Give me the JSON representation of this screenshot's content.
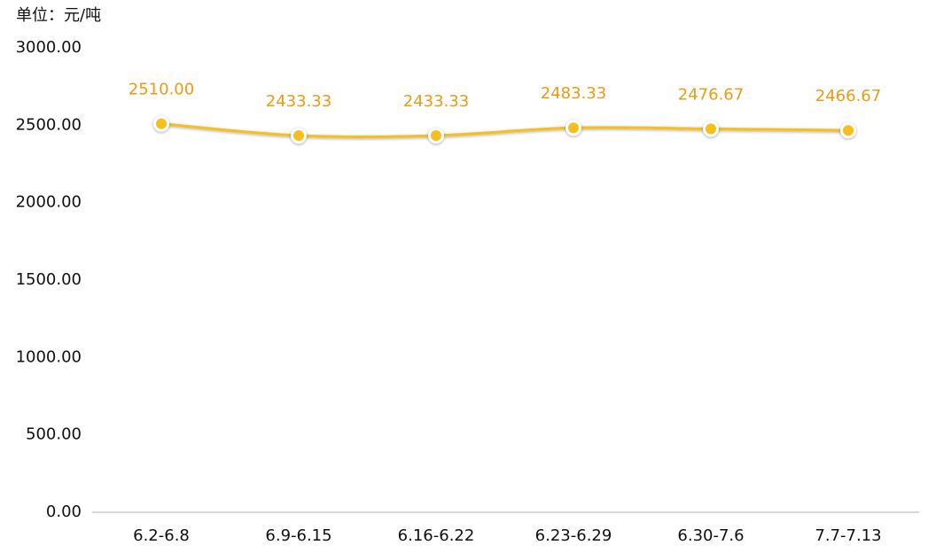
{
  "chart_data": {
    "type": "line",
    "title": "单位：元/吨",
    "categories": [
      "6.2-6.8",
      "6.9-6.15",
      "6.16-6.22",
      "6.23-6.29",
      "6.30-7.6",
      "7.7-7.13"
    ],
    "values": [
      2510.0,
      2433.33,
      2433.33,
      2483.33,
      2476.67,
      2466.67
    ],
    "value_labels": [
      "2510.00",
      "2433.33",
      "2433.33",
      "2483.33",
      "2476.67",
      "2466.67"
    ],
    "color": "#f7bf1a",
    "label_color": "#ee9a12",
    "ylim": [
      0,
      3000
    ],
    "yticks": [
      {
        "value": 0,
        "label": "0.00"
      },
      {
        "value": 500,
        "label": "500.00"
      },
      {
        "value": 1000,
        "label": "1000.00"
      },
      {
        "value": 1500,
        "label": "1500.00"
      },
      {
        "value": 2000,
        "label": "2000.00"
      },
      {
        "value": 2500,
        "label": "2500.00"
      },
      {
        "value": 3000,
        "label": "3000.00"
      }
    ],
    "grid": false
  }
}
